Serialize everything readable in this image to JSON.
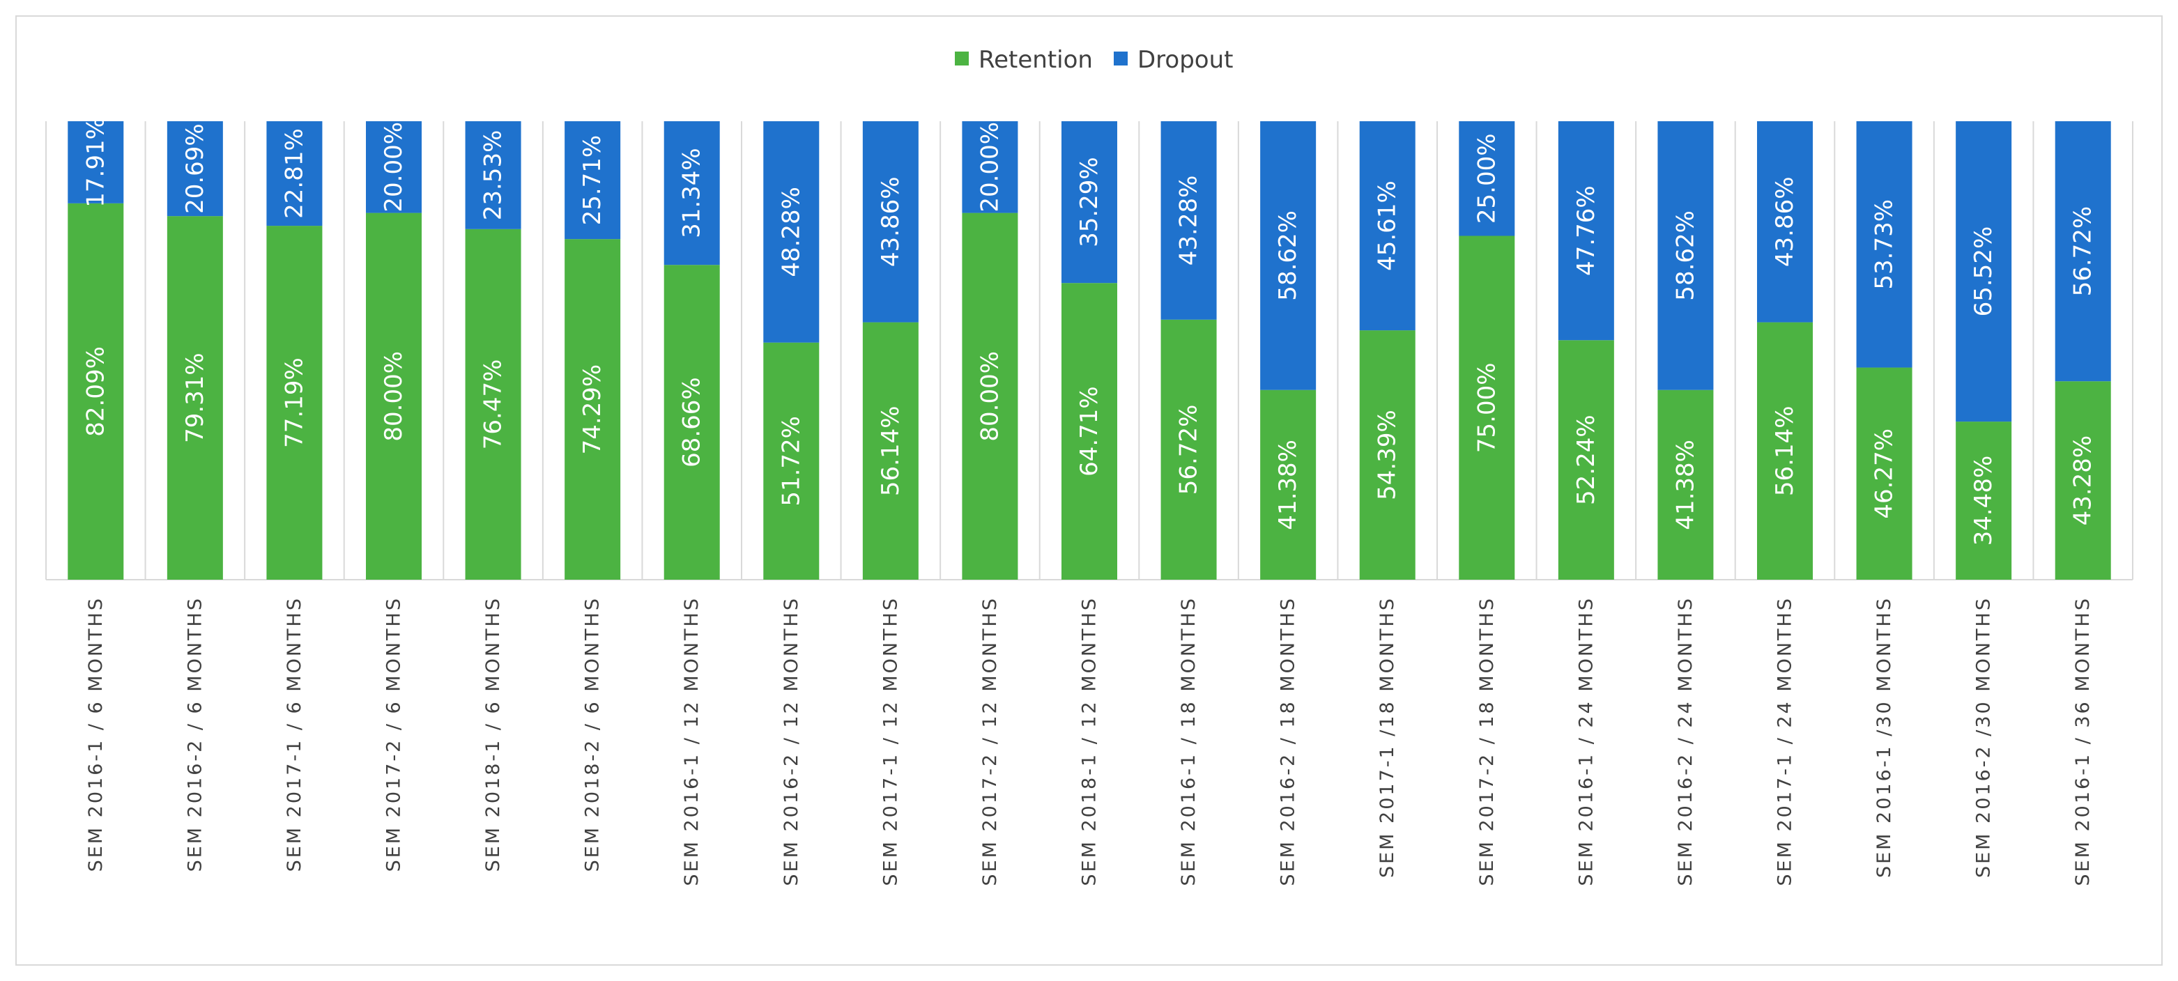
{
  "chart_data": {
    "type": "bar",
    "stacked": true,
    "normalized": true,
    "title": "",
    "xlabel": "",
    "ylabel": "",
    "ylim": [
      0,
      100
    ],
    "legend_position": "top-center",
    "grid": false,
    "categories": [
      "SEM 2016-1 / 6 MONTHS",
      "SEM 2016-2 / 6 MONTHS",
      "SEM 2017-1 / 6 MONTHS",
      "SEM 2017-2 / 6 MONTHS",
      "SEM 2018-1 / 6 MONTHS",
      "SEM 2018-2 / 6 MONTHS",
      "SEM 2016-1 / 12 MONTHS",
      "SEM 2016-2 / 12 MONTHS",
      "SEM 2017-1 / 12 MONTHS",
      "SEM 2017-2 / 12 MONTHS",
      "SEM 2018-1 / 12 MONTHS",
      "SEM 2016-1 / 18 MONTHS",
      "SEM 2016-2 / 18 MONTHS",
      "SEM 2017-1 /18 MONTHS",
      "SEM 2017-2 / 18 MONTHS",
      "SEM 2016-1 / 24 MONTHS",
      "SEM 2016-2 / 24 MONTHS",
      "SEM 2017-1 / 24 MONTHS",
      "SEM 2016-1 /30 MONTHS",
      "SEM 2016-2 /30 MONTHS",
      "SEM 2016-1 / 36 MONTHS"
    ],
    "series": [
      {
        "name": "Retention",
        "color": "#4cb342",
        "values": [
          82.09,
          79.31,
          77.19,
          80.0,
          76.47,
          74.29,
          68.66,
          51.72,
          56.14,
          80.0,
          64.71,
          56.72,
          41.38,
          54.39,
          75.0,
          52.24,
          41.38,
          56.14,
          46.27,
          34.48,
          43.28
        ],
        "labels": [
          "82.09%",
          "79.31%",
          "77.19%",
          "80.00%",
          "76.47%",
          "74.29%",
          "68.66%",
          "51.72%",
          "56.14%",
          "80.00%",
          "64.71%",
          "56.72%",
          "41.38%",
          "54.39%",
          "75.00%",
          "52.24%",
          "41.38%",
          "56.14%",
          "46.27%",
          "34.48%",
          "43.28%"
        ]
      },
      {
        "name": "Dropout",
        "color": "#1f72cd",
        "values": [
          17.91,
          20.69,
          22.81,
          20.0,
          23.53,
          25.71,
          31.34,
          48.28,
          43.86,
          20.0,
          35.29,
          43.28,
          58.62,
          45.61,
          25.0,
          47.76,
          58.62,
          43.86,
          53.73,
          65.52,
          56.72
        ],
        "labels": [
          "17.91%",
          "20.69%",
          "22.81%",
          "20.00%",
          "23.53%",
          "25.71%",
          "31.34%",
          "48.28%",
          "43.86%",
          "20.00%",
          "35.29%",
          "43.28%",
          "58.62%",
          "45.61%",
          "25.00%",
          "47.76%",
          "58.62%",
          "43.86%",
          "53.73%",
          "65.52%",
          "56.72%"
        ]
      }
    ]
  }
}
